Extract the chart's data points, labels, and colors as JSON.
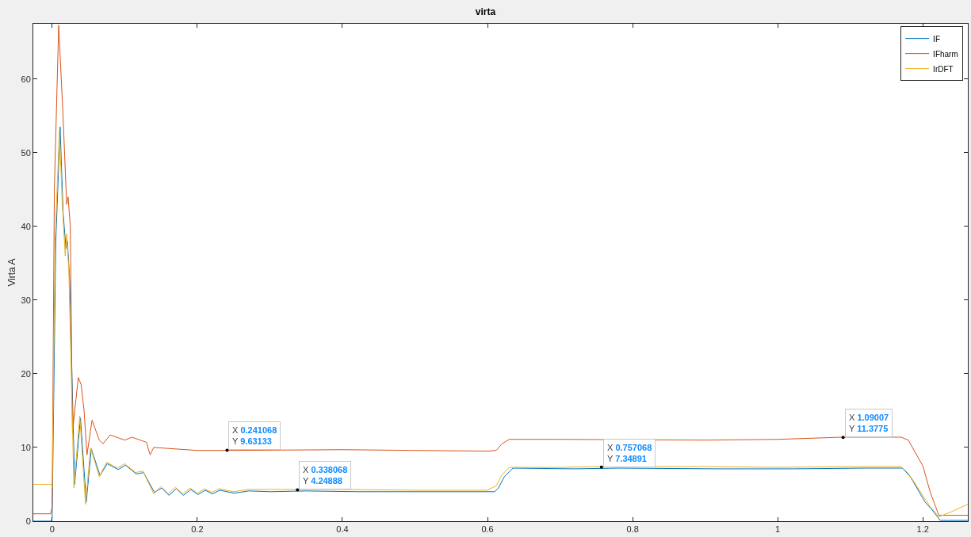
{
  "chart_data": {
    "type": "line",
    "title": "virta",
    "ylabel": "Virta A",
    "xlim": [
      -0.026,
      1.262
    ],
    "ylim": [
      0,
      67.5
    ],
    "xticks": [
      0,
      0.2,
      0.4,
      0.6,
      0.8,
      1,
      1.2
    ],
    "yticks": [
      0,
      10,
      20,
      30,
      40,
      50,
      60
    ],
    "grid": false,
    "legend": "top right",
    "line_style": "solid",
    "marker": "none",
    "series": [
      {
        "name": "IF",
        "color": "#0072bd",
        "x": [
          -0.026,
          -0.001,
          0.0,
          0.005,
          0.011,
          0.015,
          0.019,
          0.021,
          0.024,
          0.031,
          0.039,
          0.047,
          0.054,
          0.066,
          0.076,
          0.091,
          0.101,
          0.116,
          0.126,
          0.141,
          0.151,
          0.161,
          0.171,
          0.181,
          0.191,
          0.201,
          0.211,
          0.221,
          0.231,
          0.251,
          0.271,
          0.301,
          0.35,
          0.42,
          0.52,
          0.61,
          0.615,
          0.623,
          0.635,
          0.72,
          0.78,
          0.92,
          1.02,
          1.12,
          1.172,
          1.183,
          1.203,
          1.213,
          1.224,
          1.262
        ],
        "values": [
          0,
          0,
          0.5,
          38,
          53.5,
          42,
          37,
          38,
          33,
          5,
          14,
          2.6,
          9.8,
          6.2,
          7.8,
          7.0,
          7.6,
          6.4,
          6.6,
          3.9,
          4.5,
          3.5,
          4.4,
          3.5,
          4.3,
          3.6,
          4.2,
          3.7,
          4.2,
          3.8,
          4.1,
          4.0,
          4.1,
          4.0,
          4.0,
          4.0,
          4.5,
          6.0,
          7.2,
          7.1,
          7.2,
          7.1,
          7.1,
          7.2,
          7.2,
          6.0,
          2.6,
          1.5,
          0.1,
          0.1
        ]
      },
      {
        "name": "IFharm",
        "color": "#d95319",
        "x": [
          -0.026,
          -0.002,
          0.0,
          0.003,
          0.009,
          0.015,
          0.02,
          0.022,
          0.025,
          0.028,
          0.036,
          0.04,
          0.044,
          0.048,
          0.055,
          0.065,
          0.07,
          0.08,
          0.1,
          0.11,
          0.13,
          0.135,
          0.14,
          0.2,
          0.241,
          0.4,
          0.5,
          0.6,
          0.612,
          0.62,
          0.63,
          0.7,
          0.9,
          1.0,
          1.09,
          1.17,
          1.18,
          1.2,
          1.21,
          1.222,
          1.262
        ],
        "values": [
          1.0,
          1.0,
          2.0,
          45,
          67.3,
          55,
          43,
          44,
          40,
          12,
          19.5,
          18.5,
          15,
          9,
          13.7,
          11,
          10.5,
          11.7,
          11,
          11.4,
          10.7,
          9,
          10,
          9.6,
          9.6,
          9.7,
          9.6,
          9.5,
          9.6,
          10.5,
          11.1,
          11.1,
          11.0,
          11.1,
          11.4,
          11.4,
          11.0,
          7.5,
          4,
          0.8,
          0.8
        ]
      },
      {
        "name": "IrDFT",
        "color": "#edb120",
        "x": [
          -0.026,
          -0.001,
          0.0,
          0.004,
          0.01,
          0.014,
          0.018,
          0.02,
          0.023,
          0.03,
          0.038,
          0.046,
          0.053,
          0.065,
          0.075,
          0.09,
          0.1,
          0.115,
          0.125,
          0.14,
          0.15,
          0.16,
          0.17,
          0.18,
          0.19,
          0.2,
          0.21,
          0.22,
          0.23,
          0.25,
          0.27,
          0.3,
          0.338,
          0.4,
          0.5,
          0.6,
          0.612,
          0.62,
          0.63,
          0.7,
          0.757,
          0.9,
          1.0,
          1.1,
          1.17,
          1.18,
          1.2,
          1.21,
          1.222,
          1.24,
          1.262
        ],
        "values": [
          5,
          5,
          4.5,
          38,
          53,
          43,
          36,
          39,
          34,
          4.5,
          14.3,
          2.3,
          10,
          6,
          8,
          7.2,
          7.8,
          6.6,
          6.8,
          3.7,
          4.7,
          3.7,
          4.6,
          3.7,
          4.5,
          3.8,
          4.4,
          3.9,
          4.4,
          4.0,
          4.3,
          4.3,
          4.3,
          4.3,
          4.2,
          4.2,
          4.8,
          6.3,
          7.3,
          7.3,
          7.4,
          7.4,
          7.3,
          7.4,
          7.4,
          6.5,
          3.5,
          2.0,
          0.6,
          1.3,
          2.3
        ]
      }
    ],
    "annotations": [
      {
        "text": "X 0.241068\nY 9.63133",
        "x": 0.241068,
        "y": 9.63133
      },
      {
        "text": "X 0.338068\nY 4.24888",
        "x": 0.338068,
        "y": 4.24888
      },
      {
        "text": "X 0.757068\nY 7.34891",
        "x": 0.757068,
        "y": 7.34891
      },
      {
        "text": "X 1.09007\nY 11.3775",
        "x": 1.09007,
        "y": 11.3775
      }
    ]
  }
}
